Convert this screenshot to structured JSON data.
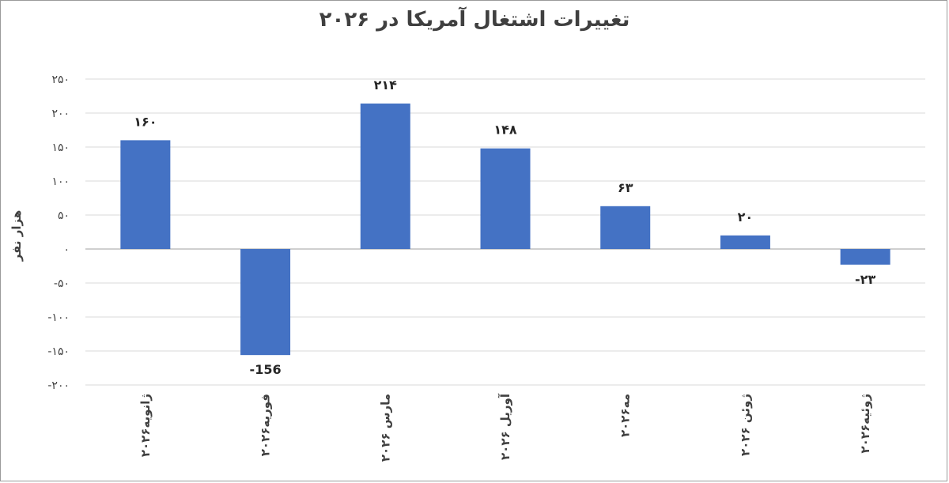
{
  "chart_data": {
    "type": "bar",
    "title": "تغییرات اشتغال آمریکا در ۲۰۲۶",
    "ylabel": "هزار نفر",
    "xlabel": "",
    "categories": [
      "ژانویه۲۰۲۶",
      "فوریه۲۰۲۶",
      "مارس ۲۰۲۶",
      "آوریل ۲۰۲۶",
      "مه۲۰۲۶",
      "ژوئن ۲۰۲۶",
      "ژوئیه۲۰۲۶"
    ],
    "values": [
      160,
      -156,
      214,
      148,
      63,
      20,
      -23
    ],
    "value_labels": [
      "۱۶۰",
      "-156",
      "۲۱۴",
      "۱۴۸",
      "۶۳",
      "۲۰",
      "-۲۳"
    ],
    "ylim": [
      -200,
      250
    ],
    "yticks": [
      250,
      200,
      150,
      100,
      50,
      0,
      -50,
      -100,
      -150,
      -200
    ],
    "ytick_labels": [
      "۲۵۰",
      "۲۰۰",
      "۱۵۰",
      "۱۰۰",
      "۵۰",
      "۰",
      "-۵۰",
      "-۱۰۰",
      "-۱۵۰",
      "-۲۰۰"
    ],
    "grid": true,
    "legend": "none",
    "bar_color": "#4472c4",
    "grid_color": "#d9d9d9"
  }
}
